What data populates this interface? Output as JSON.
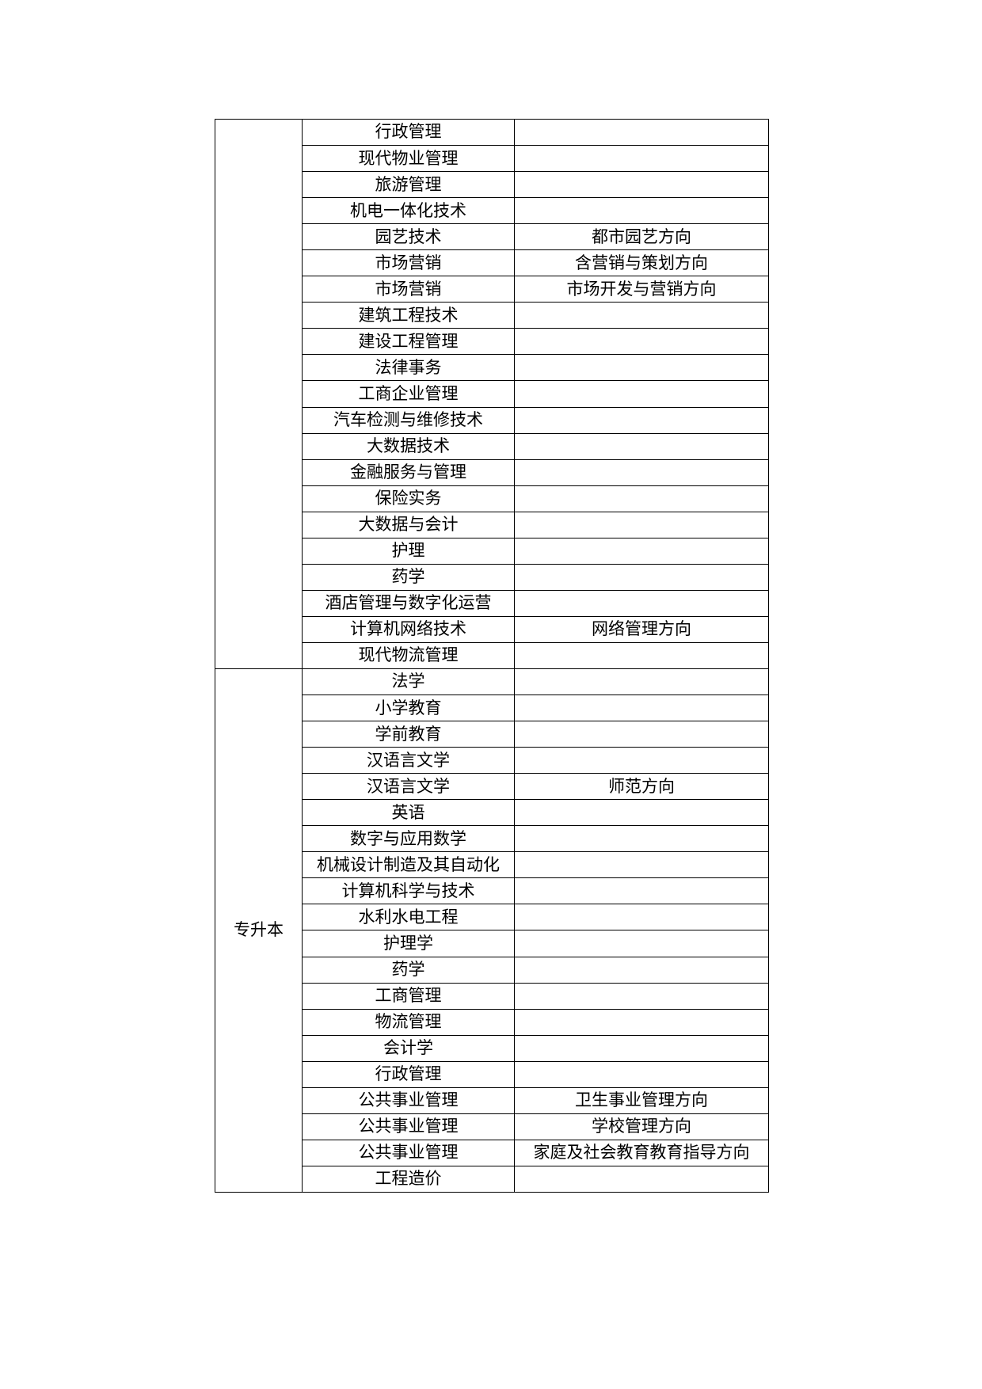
{
  "page": {
    "background_color": "#ffffff",
    "text_color": "#000000",
    "table_border_color": "#000000"
  },
  "table": {
    "columns": [
      "level",
      "major",
      "direction"
    ],
    "sections": [
      {
        "level_label": "",
        "rows": [
          {
            "major": "行政管理",
            "direction": ""
          },
          {
            "major": "现代物业管理",
            "direction": ""
          },
          {
            "major": "旅游管理",
            "direction": ""
          },
          {
            "major": "机电一体化技术",
            "direction": ""
          },
          {
            "major": "园艺技术",
            "direction": "都市园艺方向"
          },
          {
            "major": "市场营销",
            "direction": "含营销与策划方向"
          },
          {
            "major": "市场营销",
            "direction": "市场开发与营销方向"
          },
          {
            "major": "建筑工程技术",
            "direction": ""
          },
          {
            "major": "建设工程管理",
            "direction": ""
          },
          {
            "major": "法律事务",
            "direction": ""
          },
          {
            "major": "工商企业管理",
            "direction": ""
          },
          {
            "major": "汽车检测与维修技术",
            "direction": ""
          },
          {
            "major": "大数据技术",
            "direction": ""
          },
          {
            "major": "金融服务与管理",
            "direction": ""
          },
          {
            "major": "保险实务",
            "direction": ""
          },
          {
            "major": "大数据与会计",
            "direction": ""
          },
          {
            "major": "护理",
            "direction": ""
          },
          {
            "major": "药学",
            "direction": ""
          },
          {
            "major": "酒店管理与数字化运营",
            "direction": ""
          },
          {
            "major": "计算机网络技术",
            "direction": "网络管理方向"
          },
          {
            "major": "现代物流管理",
            "direction": ""
          }
        ]
      },
      {
        "level_label": "专升本",
        "rows": [
          {
            "major": "法学",
            "direction": ""
          },
          {
            "major": "小学教育",
            "direction": ""
          },
          {
            "major": "学前教育",
            "direction": ""
          },
          {
            "major": "汉语言文学",
            "direction": ""
          },
          {
            "major": "汉语言文学",
            "direction": "师范方向"
          },
          {
            "major": "英语",
            "direction": ""
          },
          {
            "major": "数字与应用数学",
            "direction": ""
          },
          {
            "major": "机械设计制造及其自动化",
            "direction": ""
          },
          {
            "major": "计算机科学与技术",
            "direction": ""
          },
          {
            "major": "水利水电工程",
            "direction": ""
          },
          {
            "major": "护理学",
            "direction": ""
          },
          {
            "major": "药学",
            "direction": ""
          },
          {
            "major": "工商管理",
            "direction": ""
          },
          {
            "major": "物流管理",
            "direction": ""
          },
          {
            "major": "会计学",
            "direction": ""
          },
          {
            "major": "行政管理",
            "direction": ""
          },
          {
            "major": "公共事业管理",
            "direction": "卫生事业管理方向"
          },
          {
            "major": "公共事业管理",
            "direction": "学校管理方向"
          },
          {
            "major": "公共事业管理",
            "direction": "家庭及社会教育教育指导方向"
          },
          {
            "major": "工程造价",
            "direction": ""
          }
        ]
      }
    ]
  }
}
